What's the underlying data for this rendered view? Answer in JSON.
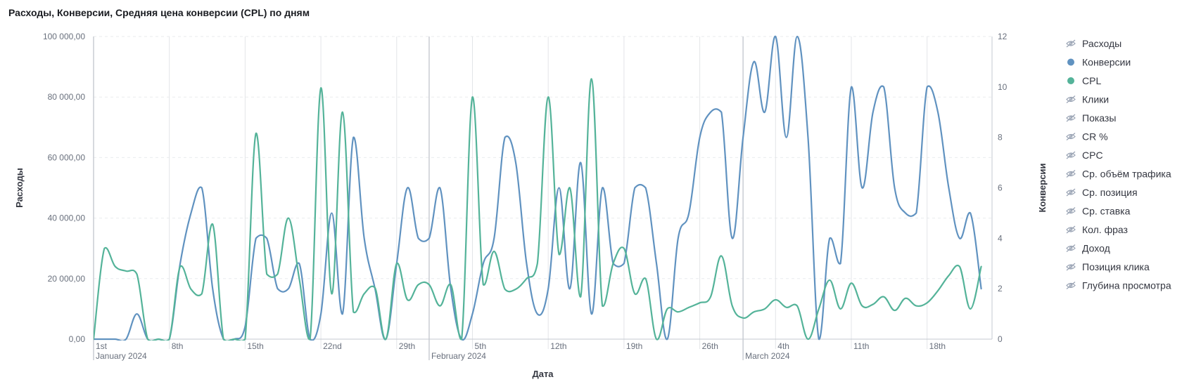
{
  "title": "Расходы, Конверсии, Средняя цена конверсии (CPL) по дням",
  "chart_data": {
    "type": "line",
    "xlabel": "Дата",
    "ylabel_left": "Расходы",
    "ylabel_right": "Конверсии",
    "ylim_left": [
      0,
      100000
    ],
    "ylim_right": [
      0,
      12
    ],
    "left_ticks": [
      {
        "value": 0,
        "label": "0,00"
      },
      {
        "value": 20000,
        "label": "20 000,00"
      },
      {
        "value": 40000,
        "label": "40 000,00"
      },
      {
        "value": 60000,
        "label": "60 000,00"
      },
      {
        "value": 80000,
        "label": "80 000,00"
      },
      {
        "value": 100000,
        "label": "100 000,00"
      }
    ],
    "right_ticks": [
      {
        "value": 0,
        "label": "0"
      },
      {
        "value": 2,
        "label": "2"
      },
      {
        "value": 4,
        "label": "4"
      },
      {
        "value": 6,
        "label": "6"
      },
      {
        "value": 8,
        "label": "8"
      },
      {
        "value": 10,
        "label": "10"
      },
      {
        "value": 12,
        "label": "12"
      }
    ],
    "x_start": "2024-01-01",
    "x_end": "2024-03-24",
    "x_ticks": [
      {
        "date": "2024-01-01",
        "label": "1st",
        "major": "January 2024"
      },
      {
        "date": "2024-01-08",
        "label": "8th"
      },
      {
        "date": "2024-01-15",
        "label": "15th"
      },
      {
        "date": "2024-01-22",
        "label": "22nd"
      },
      {
        "date": "2024-01-29",
        "label": "29th"
      },
      {
        "date": "2024-02-01",
        "label": "",
        "major": "February 2024"
      },
      {
        "date": "2024-02-05",
        "label": "5th"
      },
      {
        "date": "2024-02-12",
        "label": "12th"
      },
      {
        "date": "2024-02-19",
        "label": "19th"
      },
      {
        "date": "2024-02-26",
        "label": "26th"
      },
      {
        "date": "2024-03-01",
        "label": "",
        "major": "March 2024"
      },
      {
        "date": "2024-03-04",
        "label": "4th"
      },
      {
        "date": "2024-03-11",
        "label": "11th"
      },
      {
        "date": "2024-03-18",
        "label": "18th"
      }
    ],
    "grid": true,
    "legend_position": "right",
    "series": [
      {
        "name": "Конверсии",
        "axis": "right",
        "color": "#6092c0",
        "points": [
          [
            "2024-01-01",
            0
          ],
          [
            "2024-01-02",
            0
          ],
          [
            "2024-01-03",
            0
          ],
          [
            "2024-01-04",
            0
          ],
          [
            "2024-01-05",
            1
          ],
          [
            "2024-01-06",
            0
          ],
          [
            "2024-01-07",
            0
          ],
          [
            "2024-01-08",
            0
          ],
          [
            "2024-01-09",
            3
          ],
          [
            "2024-01-10",
            5
          ],
          [
            "2024-01-11",
            6
          ],
          [
            "2024-01-12",
            2
          ],
          [
            "2024-01-13",
            0
          ],
          [
            "2024-01-14",
            0
          ],
          [
            "2024-01-15",
            0.5
          ],
          [
            "2024-01-16",
            4
          ],
          [
            "2024-01-17",
            4
          ],
          [
            "2024-01-18",
            2
          ],
          [
            "2024-01-19",
            2
          ],
          [
            "2024-01-20",
            3
          ],
          [
            "2024-01-21",
            0
          ],
          [
            "2024-01-22",
            1
          ],
          [
            "2024-01-23",
            5
          ],
          [
            "2024-01-24",
            1
          ],
          [
            "2024-01-25",
            8
          ],
          [
            "2024-01-26",
            4
          ],
          [
            "2024-01-27",
            2
          ],
          [
            "2024-01-28",
            0
          ],
          [
            "2024-01-29",
            3
          ],
          [
            "2024-01-30",
            6
          ],
          [
            "2024-01-31",
            4
          ],
          [
            "2024-02-01",
            4
          ],
          [
            "2024-02-02",
            6
          ],
          [
            "2024-02-03",
            2
          ],
          [
            "2024-02-04",
            0
          ],
          [
            "2024-02-05",
            1
          ],
          [
            "2024-02-06",
            3
          ],
          [
            "2024-02-07",
            4
          ],
          [
            "2024-02-08",
            8
          ],
          [
            "2024-02-09",
            7
          ],
          [
            "2024-02-10",
            3
          ],
          [
            "2024-02-11",
            1
          ],
          [
            "2024-02-12",
            2
          ],
          [
            "2024-02-13",
            6
          ],
          [
            "2024-02-14",
            2
          ],
          [
            "2024-02-15",
            7
          ],
          [
            "2024-02-16",
            1
          ],
          [
            "2024-02-17",
            6
          ],
          [
            "2024-02-18",
            3
          ],
          [
            "2024-02-19",
            3
          ],
          [
            "2024-02-20",
            6
          ],
          [
            "2024-02-21",
            6
          ],
          [
            "2024-02-22",
            3
          ],
          [
            "2024-02-23",
            0
          ],
          [
            "2024-02-24",
            4
          ],
          [
            "2024-02-25",
            5
          ],
          [
            "2024-02-26",
            8
          ],
          [
            "2024-02-27",
            9
          ],
          [
            "2024-02-28",
            9
          ],
          [
            "2024-02-29",
            4
          ],
          [
            "2024-03-01",
            8
          ],
          [
            "2024-03-02",
            11
          ],
          [
            "2024-03-03",
            9
          ],
          [
            "2024-03-04",
            12
          ],
          [
            "2024-03-05",
            8
          ],
          [
            "2024-03-06",
            12
          ],
          [
            "2024-03-07",
            8
          ],
          [
            "2024-03-08",
            0
          ],
          [
            "2024-03-09",
            4
          ],
          [
            "2024-03-10",
            3
          ],
          [
            "2024-03-11",
            10
          ],
          [
            "2024-03-12",
            6
          ],
          [
            "2024-03-13",
            9
          ],
          [
            "2024-03-14",
            10
          ],
          [
            "2024-03-15",
            6
          ],
          [
            "2024-03-16",
            5
          ],
          [
            "2024-03-17",
            5
          ],
          [
            "2024-03-18",
            10
          ],
          [
            "2024-03-19",
            9
          ],
          [
            "2024-03-20",
            6
          ],
          [
            "2024-03-21",
            4
          ],
          [
            "2024-03-22",
            5
          ],
          [
            "2024-03-23",
            2
          ]
        ]
      },
      {
        "name": "CPL",
        "axis": "left",
        "color": "#54b399",
        "points": [
          [
            "2024-01-01",
            0
          ],
          [
            "2024-01-02",
            30000
          ],
          [
            "2024-01-03",
            24000
          ],
          [
            "2024-01-04",
            22500
          ],
          [
            "2024-01-05",
            21500
          ],
          [
            "2024-01-06",
            0
          ],
          [
            "2024-01-07",
            0
          ],
          [
            "2024-01-08",
            0
          ],
          [
            "2024-01-09",
            24000
          ],
          [
            "2024-01-10",
            16500
          ],
          [
            "2024-01-11",
            15000
          ],
          [
            "2024-01-12",
            38000
          ],
          [
            "2024-01-13",
            0
          ],
          [
            "2024-01-14",
            0
          ],
          [
            "2024-01-15",
            0
          ],
          [
            "2024-01-16",
            68000
          ],
          [
            "2024-01-17",
            21500
          ],
          [
            "2024-01-18",
            21500
          ],
          [
            "2024-01-19",
            40000
          ],
          [
            "2024-01-20",
            20000
          ],
          [
            "2024-01-21",
            0
          ],
          [
            "2024-01-22",
            83000
          ],
          [
            "2024-01-23",
            15000
          ],
          [
            "2024-01-24",
            75000
          ],
          [
            "2024-01-25",
            9000
          ],
          [
            "2024-01-26",
            15000
          ],
          [
            "2024-01-27",
            17000
          ],
          [
            "2024-01-28",
            0
          ],
          [
            "2024-01-29",
            25000
          ],
          [
            "2024-01-30",
            13000
          ],
          [
            "2024-01-31",
            18000
          ],
          [
            "2024-02-01",
            18000
          ],
          [
            "2024-02-02",
            11000
          ],
          [
            "2024-02-03",
            18000
          ],
          [
            "2024-02-04",
            0
          ],
          [
            "2024-02-05",
            80000
          ],
          [
            "2024-02-06",
            18000
          ],
          [
            "2024-02-07",
            29000
          ],
          [
            "2024-02-08",
            16500
          ],
          [
            "2024-02-09",
            16500
          ],
          [
            "2024-02-10",
            20000
          ],
          [
            "2024-02-11",
            25000
          ],
          [
            "2024-02-12",
            80000
          ],
          [
            "2024-02-13",
            28000
          ],
          [
            "2024-02-14",
            50000
          ],
          [
            "2024-02-15",
            14000
          ],
          [
            "2024-02-16",
            86000
          ],
          [
            "2024-02-17",
            11000
          ],
          [
            "2024-02-18",
            25000
          ],
          [
            "2024-02-19",
            30000
          ],
          [
            "2024-02-20",
            15000
          ],
          [
            "2024-02-21",
            20000
          ],
          [
            "2024-02-22",
            0
          ],
          [
            "2024-02-23",
            10000
          ],
          [
            "2024-02-24",
            9000
          ],
          [
            "2024-02-25",
            10500
          ],
          [
            "2024-02-26",
            12000
          ],
          [
            "2024-02-27",
            14000
          ],
          [
            "2024-02-28",
            27500
          ],
          [
            "2024-02-29",
            11000
          ],
          [
            "2024-03-01",
            7000
          ],
          [
            "2024-03-02",
            9000
          ],
          [
            "2024-03-03",
            10000
          ],
          [
            "2024-03-04",
            13000
          ],
          [
            "2024-03-05",
            10500
          ],
          [
            "2024-03-06",
            11000
          ],
          [
            "2024-03-07",
            0
          ],
          [
            "2024-03-08",
            10000
          ],
          [
            "2024-03-09",
            19500
          ],
          [
            "2024-03-10",
            10000
          ],
          [
            "2024-03-11",
            18500
          ],
          [
            "2024-03-12",
            11000
          ],
          [
            "2024-03-13",
            11500
          ],
          [
            "2024-03-14",
            14000
          ],
          [
            "2024-03-15",
            9500
          ],
          [
            "2024-03-16",
            13500
          ],
          [
            "2024-03-17",
            11000
          ],
          [
            "2024-03-18",
            12000
          ],
          [
            "2024-03-19",
            16000
          ],
          [
            "2024-03-20",
            21000
          ],
          [
            "2024-03-21",
            24000
          ],
          [
            "2024-03-22",
            10000
          ],
          [
            "2024-03-23",
            24000
          ]
        ]
      }
    ],
    "legend": [
      {
        "label": "Расходы",
        "state": "hidden",
        "icon": "eye-closed-icon"
      },
      {
        "label": "Конверсии",
        "state": "visible",
        "color": "#6092c0"
      },
      {
        "label": "CPL",
        "state": "visible",
        "color": "#54b399"
      },
      {
        "label": "Клики",
        "state": "hidden",
        "icon": "eye-closed-icon"
      },
      {
        "label": "Показы",
        "state": "hidden",
        "icon": "eye-closed-icon"
      },
      {
        "label": "CR %",
        "state": "hidden",
        "icon": "eye-closed-icon"
      },
      {
        "label": "CPC",
        "state": "hidden",
        "icon": "eye-closed-icon"
      },
      {
        "label": "Ср. объём трафика",
        "state": "hidden",
        "icon": "eye-closed-icon"
      },
      {
        "label": "Ср. позиция",
        "state": "hidden",
        "icon": "eye-closed-icon"
      },
      {
        "label": "Ср. ставка",
        "state": "hidden",
        "icon": "eye-closed-icon"
      },
      {
        "label": "Кол. фраз",
        "state": "hidden",
        "icon": "eye-closed-icon"
      },
      {
        "label": "Доход",
        "state": "hidden",
        "icon": "eye-closed-icon"
      },
      {
        "label": "Позиция клика",
        "state": "hidden",
        "icon": "eye-closed-icon"
      },
      {
        "label": "Глубина просмотра",
        "state": "hidden",
        "icon": "eye-closed-icon"
      }
    ]
  }
}
